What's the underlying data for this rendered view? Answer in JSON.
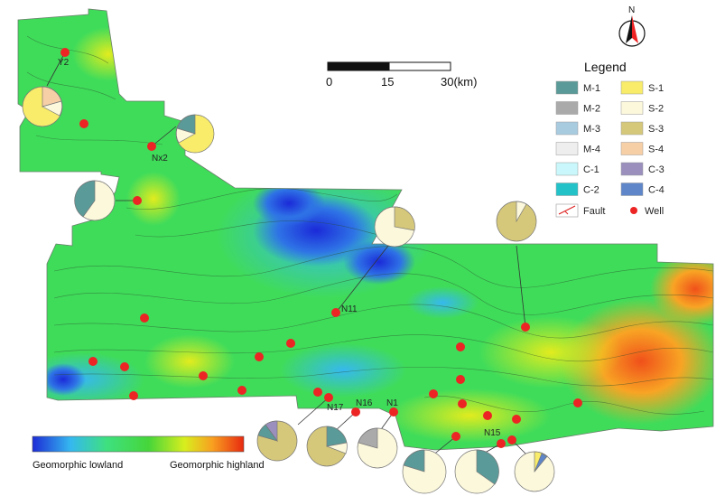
{
  "north": {
    "label": "N"
  },
  "scalebar": {
    "ticks": [
      "0",
      "15",
      "30(km)"
    ]
  },
  "legend": {
    "title": "Legend",
    "items": [
      {
        "code": "M-1",
        "color": "#5a9a98"
      },
      {
        "code": "S-1",
        "color": "#f8ec6a"
      },
      {
        "code": "M-2",
        "color": "#aaaaaa"
      },
      {
        "code": "S-2",
        "color": "#fcf8dc"
      },
      {
        "code": "M-3",
        "color": "#a9cbe0"
      },
      {
        "code": "S-3",
        "color": "#d6c87a"
      },
      {
        "code": "M-4",
        "color": "#eeeeee"
      },
      {
        "code": "S-4",
        "color": "#f7cfa6"
      },
      {
        "code": "C-1",
        "color": "#c9f7fb"
      },
      {
        "code": "C-3",
        "color": "#9b8fbe"
      },
      {
        "code": "C-2",
        "color": "#23c2c9"
      },
      {
        "code": "C-4",
        "color": "#5e86c8"
      }
    ],
    "fault_label": "Fault",
    "well_label": "Well"
  },
  "gradient": {
    "low_label": "Geomorphic lowland",
    "high_label": "Geomorphic highland"
  },
  "well_labels": [
    "Y2",
    "Nx2",
    "N11",
    "N17",
    "N16",
    "N1",
    "N15"
  ]
}
